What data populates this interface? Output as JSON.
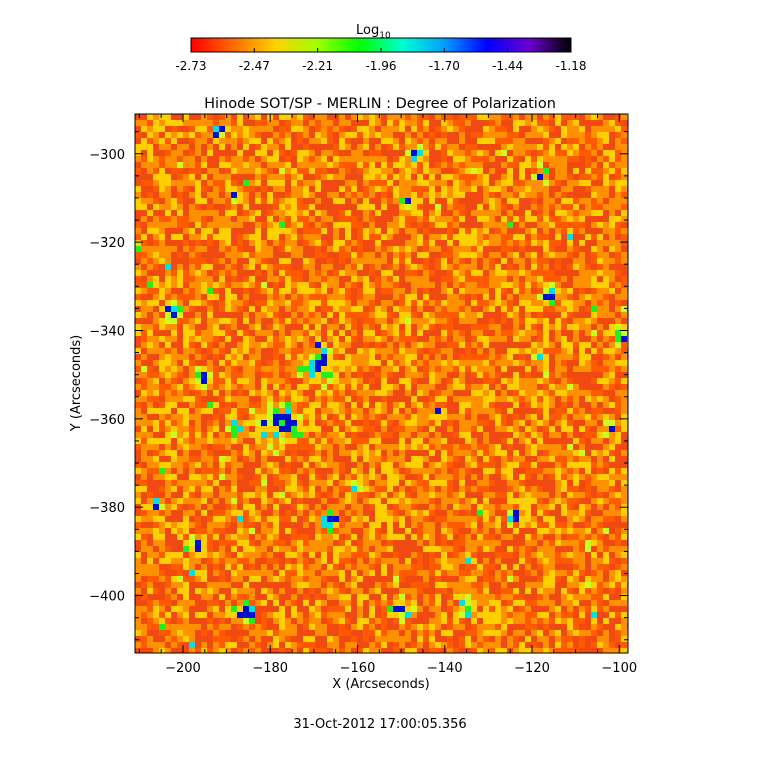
{
  "chart_data": {
    "type": "heatmap",
    "title": "Hinode SOT/SP - MERLIN : Degree of Polarization",
    "xlabel": "X (Arcseconds)",
    "ylabel": "Y (Arcseconds)",
    "xlim": [
      -211,
      -98
    ],
    "ylim": [
      -413,
      -291
    ],
    "x_ticks": [
      -200,
      -180,
      -160,
      -140,
      -120,
      -100
    ],
    "y_ticks": [
      -300,
      -320,
      -340,
      -360,
      -380,
      -400
    ],
    "colorbar": {
      "label_base": "Log",
      "label_sub": "10",
      "ticks": [
        "-2.73",
        "-2.47",
        "-2.21",
        "-1.96",
        "-1.70",
        "-1.44",
        "-1.18"
      ],
      "range": [
        -2.73,
        -1.18
      ],
      "colors": [
        "#ff0000",
        "#ff6a00",
        "#ffd200",
        "#a0ff00",
        "#00ff00",
        "#00ffd0",
        "#00a0ff",
        "#0000ff",
        "#6a00d0",
        "#000000"
      ]
    },
    "grid": false,
    "footer": "31-Oct-2012 17:00:05.356",
    "features": [
      {
        "x": -178,
        "y": -361,
        "r": 3.5
      },
      {
        "x": -169,
        "y": -348,
        "r": 2.6
      },
      {
        "x": -196,
        "y": -351,
        "r": 1.6
      },
      {
        "x": -188,
        "y": -362,
        "r": 1.4
      },
      {
        "x": -150,
        "y": -403,
        "r": 1.6
      },
      {
        "x": -186,
        "y": -404,
        "r": 1.6
      },
      {
        "x": -197,
        "y": -389,
        "r": 1.5
      },
      {
        "x": -135,
        "y": -403,
        "r": 1.4
      },
      {
        "x": -166,
        "y": -383,
        "r": 1.6
      },
      {
        "x": -116,
        "y": -332,
        "r": 1.4
      },
      {
        "x": -99,
        "y": -341,
        "r": 1.4
      },
      {
        "x": -147,
        "y": -300,
        "r": 1.3
      },
      {
        "x": -202,
        "y": -336,
        "r": 1.4
      },
      {
        "x": -148,
        "y": -311,
        "r": 1.2
      },
      {
        "x": -102,
        "y": -362,
        "r": 1.2
      },
      {
        "x": -188,
        "y": -309,
        "r": 1.2
      },
      {
        "x": -118,
        "y": -346,
        "r": 1.1
      },
      {
        "x": -192,
        "y": -295,
        "r": 1.1
      },
      {
        "x": -118,
        "y": -305,
        "r": 1.1
      },
      {
        "x": -160,
        "y": -375,
        "r": 1.3
      },
      {
        "x": -124,
        "y": -382,
        "r": 1.2
      },
      {
        "x": -178,
        "y": -317,
        "r": 1.0
      },
      {
        "x": -206,
        "y": -380,
        "r": 1.1
      },
      {
        "x": -142,
        "y": -359,
        "r": 1.1
      }
    ]
  }
}
